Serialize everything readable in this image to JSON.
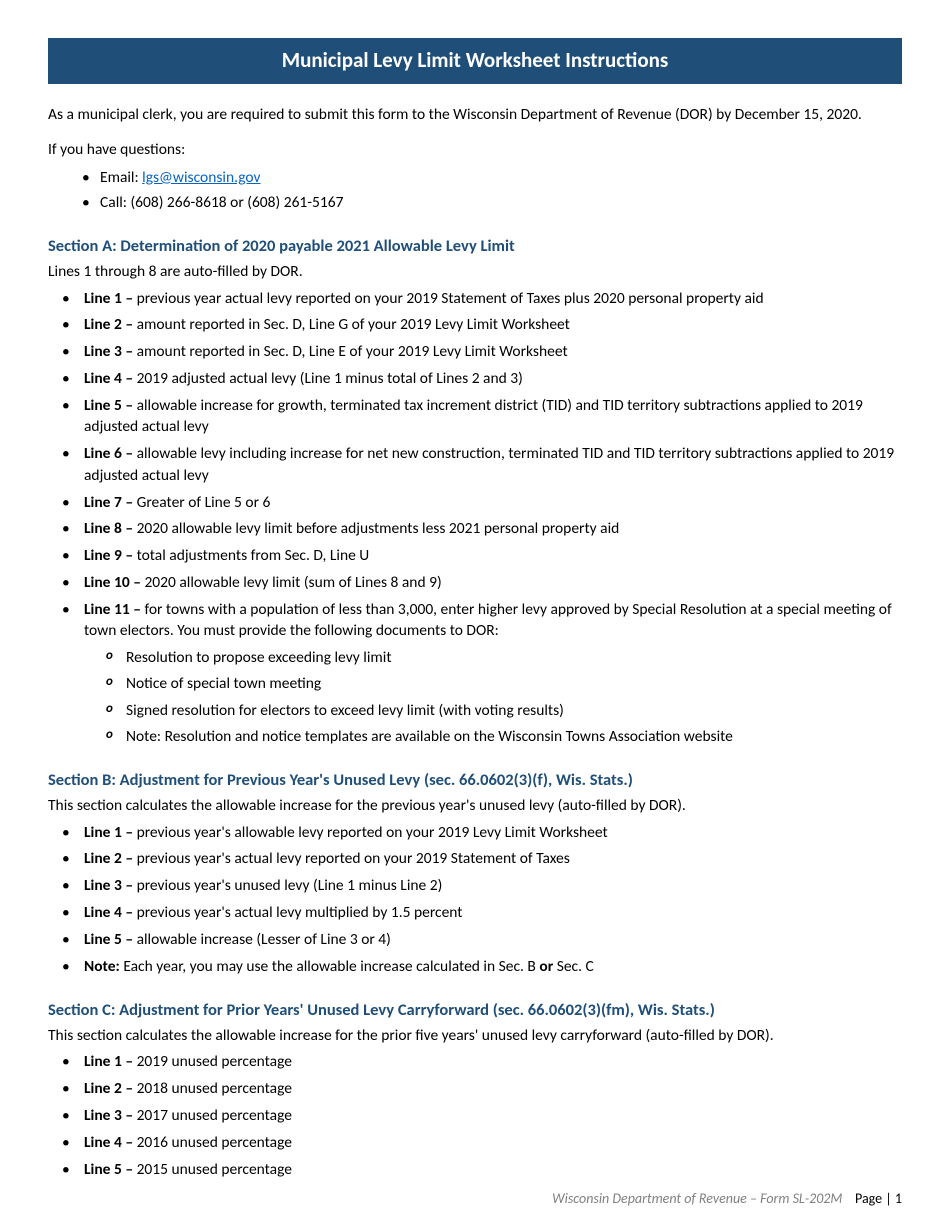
{
  "title": "Municipal Levy Limit Worksheet Instructions",
  "intro": "As a municipal clerk, you are required to submit this form to the Wisconsin Department of Revenue (DOR) by December 15, 2020.",
  "questions_label": "If you have questions:",
  "contact": {
    "email_label": "Email: ",
    "email": "lgs@wisconsin.gov",
    "call": "Call: (608) 266-8618 or (608) 261-5167"
  },
  "sectionA": {
    "heading": "Section A: Determination of 2020 payable 2021 Allowable Levy Limit",
    "sub": "Lines 1 through 8 are auto-filled by DOR.",
    "lines": [
      {
        "label": "Line 1 – ",
        "text": "previous year actual levy reported on your 2019 Statement of Taxes plus 2020 personal property aid"
      },
      {
        "label": "Line 2 – ",
        "text": "amount reported in Sec. D, Line G of your 2019 Levy Limit Worksheet"
      },
      {
        "label": "Line 3 – ",
        "text": "amount reported in Sec. D, Line E of your 2019 Levy Limit Worksheet"
      },
      {
        "label": "Line 4 – ",
        "text": "2019 adjusted actual levy (Line 1 minus total of Lines 2 and 3)"
      },
      {
        "label": "Line 5 – ",
        "text": "allowable increase for growth, terminated tax increment district (TID) and TID territory subtractions applied to 2019 adjusted actual levy"
      },
      {
        "label": "Line 6 – ",
        "text": "allowable levy including increase for net new construction, terminated TID and TID territory subtractions applied to 2019 adjusted actual levy"
      },
      {
        "label": "Line 7 – ",
        "text": "Greater of Line 5 or 6"
      },
      {
        "label": "Line 8 – ",
        "text": "2020 allowable levy limit before adjustments less 2021 personal property aid"
      },
      {
        "label": "Line 9 – ",
        "text": "total adjustments from Sec. D, Line U"
      },
      {
        "label": "Line 10 – ",
        "text": "2020 allowable levy limit (sum of Lines 8 and 9)"
      },
      {
        "label": "Line 11 – ",
        "text": "for towns with a population of less than 3,000, enter higher levy approved by Special Resolution at a special meeting of town electors. You must provide the following documents to DOR:"
      }
    ],
    "sublines": [
      "Resolution to propose exceeding levy limit",
      "Notice of special town meeting",
      "Signed resolution for electors to exceed levy limit (with voting results)",
      "Note: Resolution and notice templates are available on the Wisconsin Towns Association website"
    ]
  },
  "sectionB": {
    "heading": "Section B: Adjustment for Previous Year's Unused Levy (sec. 66.0602(3)(f), Wis. Stats.)",
    "sub": "This section calculates the allowable increase for the previous year's unused levy (auto-filled by DOR).",
    "lines": [
      {
        "label": "Line 1 – ",
        "text": "previous year's allowable levy reported on your 2019 Levy Limit Worksheet"
      },
      {
        "label": "Line 2 – ",
        "text": "previous year's actual levy reported on your 2019 Statement of Taxes"
      },
      {
        "label": "Line 3 – ",
        "text": "previous year's unused levy (Line 1 minus Line 2)"
      },
      {
        "label": "Line 4 – ",
        "text": "previous year's actual levy multiplied by 1.5 percent"
      },
      {
        "label": "Line 5 – ",
        "text": "allowable increase (Lesser of Line 3 or 4)"
      }
    ],
    "note_label": "Note: ",
    "note_pre": "Each year, you may use the allowable increase calculated in Sec. B ",
    "note_or": "or",
    "note_post": " Sec. C"
  },
  "sectionC": {
    "heading": "Section C: Adjustment for Prior Years' Unused Levy Carryforward (sec. 66.0602(3)(fm), Wis. Stats.)",
    "sub": "This section calculates the allowable increase for the prior five years' unused levy carryforward (auto-filled by DOR).",
    "lines": [
      {
        "label": "Line 1 – ",
        "text": "2019 unused percentage"
      },
      {
        "label": "Line 2 – ",
        "text": "2018 unused percentage"
      },
      {
        "label": "Line 3 – ",
        "text": "2017 unused percentage"
      },
      {
        "label": "Line 4 – ",
        "text": "2016 unused percentage"
      },
      {
        "label": "Line 5 – ",
        "text": "2015 unused percentage"
      }
    ]
  },
  "footer": {
    "org": "Wisconsin Department of Revenue – Form SL-202M",
    "page_label": "Page | ",
    "page_num": "1"
  },
  "colors": {
    "header_bg": "#1f4e79",
    "heading_text": "#1f4e79",
    "link": "#0563c1",
    "footer_gray": "#808080"
  }
}
